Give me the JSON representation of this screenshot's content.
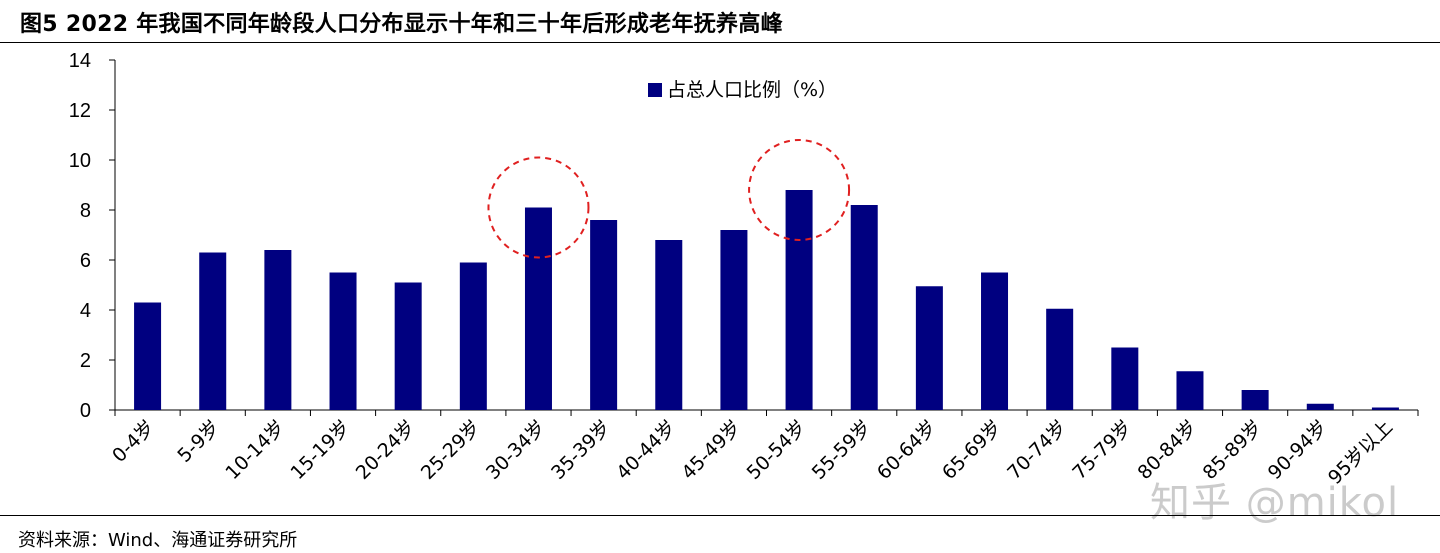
{
  "header": {
    "title": "图5  2022 年我国不同年龄段人口分布显示十年和三十年后形成老年抚养高峰"
  },
  "footer": {
    "source": "资料来源：Wind、海通证券研究所"
  },
  "watermark": "知乎 @mikol",
  "colors": {
    "bar": "#000080",
    "circle": "#e02020"
  },
  "chart_data": {
    "type": "bar",
    "title": "",
    "xlabel": "",
    "ylabel": "",
    "ylim": [
      0,
      14
    ],
    "yticks": [
      0,
      2,
      4,
      6,
      8,
      10,
      12,
      14
    ],
    "grid": false,
    "legend_position": "top-center",
    "categories": [
      "0-4岁",
      "5-9岁",
      "10-14岁",
      "15-19岁",
      "20-24岁",
      "25-29岁",
      "30-34岁",
      "35-39岁",
      "40-44岁",
      "45-49岁",
      "50-54岁",
      "55-59岁",
      "60-64岁",
      "65-69岁",
      "70-74岁",
      "75-79岁",
      "80-84岁",
      "85-89岁",
      "90-94岁",
      "95岁以上"
    ],
    "series": [
      {
        "name": "占总人口比例（%）",
        "values": [
          4.3,
          6.3,
          6.4,
          5.5,
          5.1,
          5.9,
          8.1,
          7.6,
          6.8,
          7.2,
          8.8,
          8.2,
          4.95,
          5.5,
          4.05,
          2.5,
          1.55,
          0.8,
          0.25,
          0.1
        ]
      }
    ],
    "annotations": [
      {
        "type": "dashed-circle",
        "category": "30-34岁"
      },
      {
        "type": "dashed-circle",
        "category": "50-54岁"
      }
    ]
  }
}
